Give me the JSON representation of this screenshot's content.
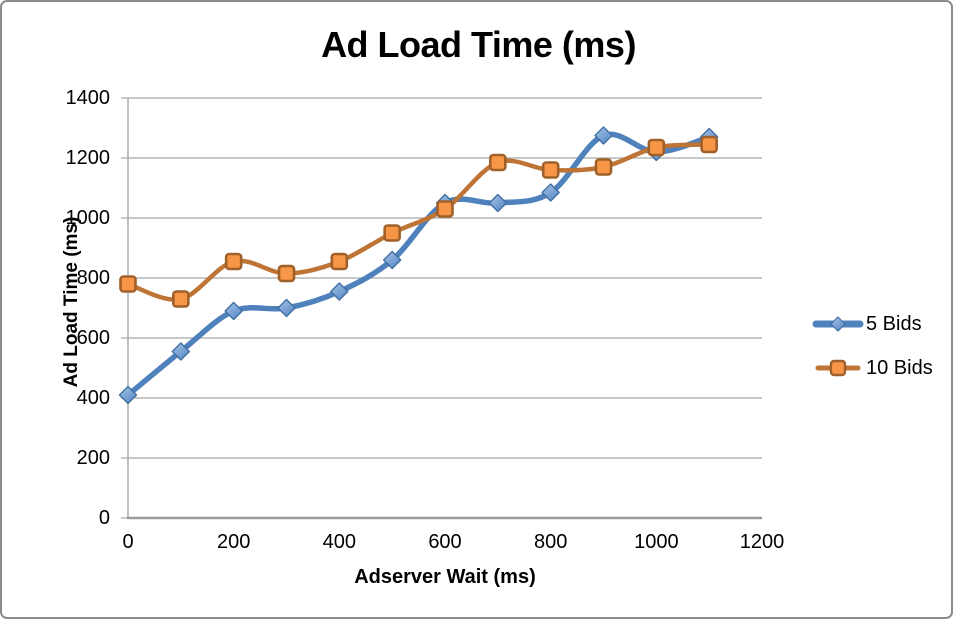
{
  "chart_data": {
    "type": "line",
    "title": "Ad Load Time (ms)",
    "xlabel": "Adserver Wait (ms)",
    "ylabel": "Ad Load Time (ms)",
    "x": [
      0,
      100,
      200,
      300,
      400,
      500,
      600,
      700,
      800,
      900,
      1000,
      1100
    ],
    "series": [
      {
        "name": "5 Bids",
        "marker": "diamond",
        "line_color": "#4f81bd",
        "marker_fill_light": "#a9c5e6",
        "marker_fill_dark": "#5b8bc9",
        "marker_stroke": "#4170a3",
        "values": [
          410,
          555,
          690,
          700,
          755,
          860,
          1050,
          1050,
          1085,
          1275,
          1220,
          1270
        ]
      },
      {
        "name": "10 Bids",
        "marker": "square",
        "line_color": "#bd7434",
        "marker_fill_light": "#f79646",
        "marker_fill_dark": "#f79646",
        "marker_stroke": "#a0602a",
        "values": [
          780,
          730,
          855,
          815,
          855,
          950,
          1030,
          1185,
          1160,
          1170,
          1235,
          1245
        ]
      }
    ],
    "xlim": [
      0,
      1200
    ],
    "ylim": [
      0,
      1400
    ],
    "x_ticks": [
      0,
      200,
      400,
      600,
      800,
      1000,
      1200
    ],
    "y_ticks": [
      0,
      200,
      400,
      600,
      800,
      1000,
      1200,
      1400
    ],
    "grid": "horizontal",
    "smooth": true,
    "legend_position": "right"
  },
  "colors": {
    "gridline": "#a6a6a6",
    "axis_line": "#9a9a9a",
    "outer_border": "#8c8c8c",
    "text": "#000000",
    "background": "#ffffff"
  }
}
